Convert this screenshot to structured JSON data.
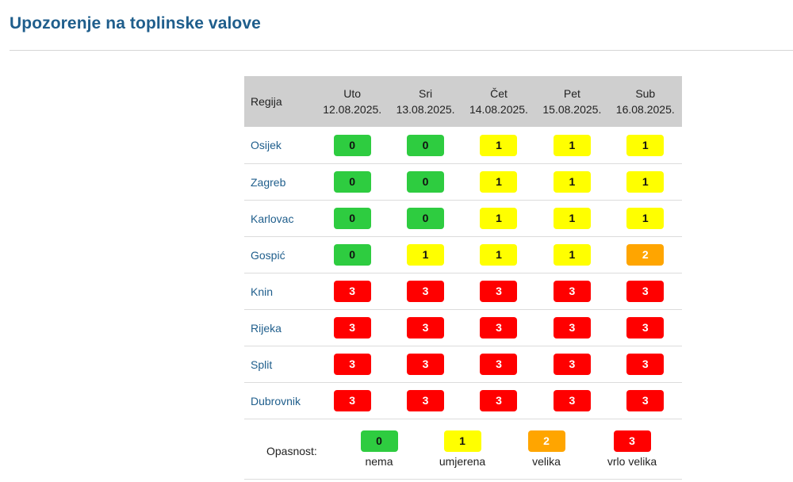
{
  "page": {
    "title": "Upozorenje na toplinske valove"
  },
  "table": {
    "region_header": "Regija",
    "days": [
      {
        "day": "Uto",
        "date": "12.08.2025."
      },
      {
        "day": "Sri",
        "date": "13.08.2025."
      },
      {
        "day": "Čet",
        "date": "14.08.2025."
      },
      {
        "day": "Pet",
        "date": "15.08.2025."
      },
      {
        "day": "Sub",
        "date": "16.08.2025."
      }
    ],
    "rows": [
      {
        "region": "Osijek",
        "levels": [
          "0",
          "0",
          "1",
          "1",
          "1"
        ]
      },
      {
        "region": "Zagreb",
        "levels": [
          "0",
          "0",
          "1",
          "1",
          "1"
        ]
      },
      {
        "region": "Karlovac",
        "levels": [
          "0",
          "0",
          "1",
          "1",
          "1"
        ]
      },
      {
        "region": "Gospić",
        "levels": [
          "0",
          "1",
          "1",
          "1",
          "2"
        ]
      },
      {
        "region": "Knin",
        "levels": [
          "3",
          "3",
          "3",
          "3",
          "3"
        ]
      },
      {
        "region": "Rijeka",
        "levels": [
          "3",
          "3",
          "3",
          "3",
          "3"
        ]
      },
      {
        "region": "Split",
        "levels": [
          "3",
          "3",
          "3",
          "3",
          "3"
        ]
      },
      {
        "region": "Dubrovnik",
        "levels": [
          "3",
          "3",
          "3",
          "3",
          "3"
        ]
      }
    ]
  },
  "legend": {
    "label": "Opasnost:",
    "items": [
      {
        "level": "0",
        "text": "nema"
      },
      {
        "level": "1",
        "text": "umjerena"
      },
      {
        "level": "2",
        "text": "velika"
      },
      {
        "level": "3",
        "text": "vrlo velika"
      }
    ]
  },
  "colors": {
    "title": "#1f5e8c",
    "header_bg": "#cfcfcf",
    "level_0": "#2ecc40",
    "level_1": "#ffff00",
    "level_2": "#ffa500",
    "level_3": "#ff0000"
  }
}
